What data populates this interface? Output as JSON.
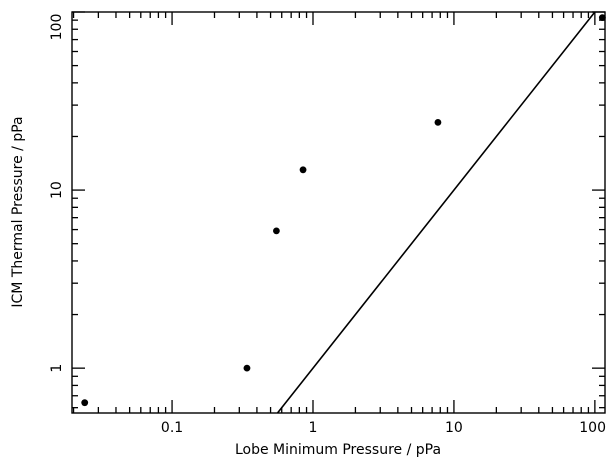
{
  "chart_data": {
    "type": "scatter",
    "xlabel": "Lobe Minimum Pressure / pPa",
    "ylabel": "ICM Thermal Pressure / pPa",
    "xscale": "log",
    "yscale": "log",
    "xlim": [
      0.0195,
      118
    ],
    "ylim": [
      0.56,
      100
    ],
    "grid": false,
    "legend": "none",
    "x_tick_labels": [
      {
        "value": 0.1,
        "label": "0.1"
      },
      {
        "value": 1,
        "label": "1"
      },
      {
        "value": 10,
        "label": "10"
      },
      {
        "value": 100,
        "label": "100"
      }
    ],
    "y_tick_labels": [
      {
        "value": 1,
        "label": "1"
      },
      {
        "value": 10,
        "label": "10"
      },
      {
        "value": 100,
        "label": "100"
      }
    ],
    "points": [
      {
        "x": 0.024,
        "y": 0.64
      },
      {
        "x": 0.34,
        "y": 1.0
      },
      {
        "x": 0.55,
        "y": 5.9
      },
      {
        "x": 0.85,
        "y": 13.0
      },
      {
        "x": 7.7,
        "y": 24.0
      },
      {
        "x": 113,
        "y": 93.0
      }
    ],
    "line": {
      "x": [
        0.56,
        100
      ],
      "y": [
        0.56,
        100
      ]
    },
    "colors": {
      "axes": "#000000",
      "points": "#000000",
      "line": "#000000"
    }
  }
}
